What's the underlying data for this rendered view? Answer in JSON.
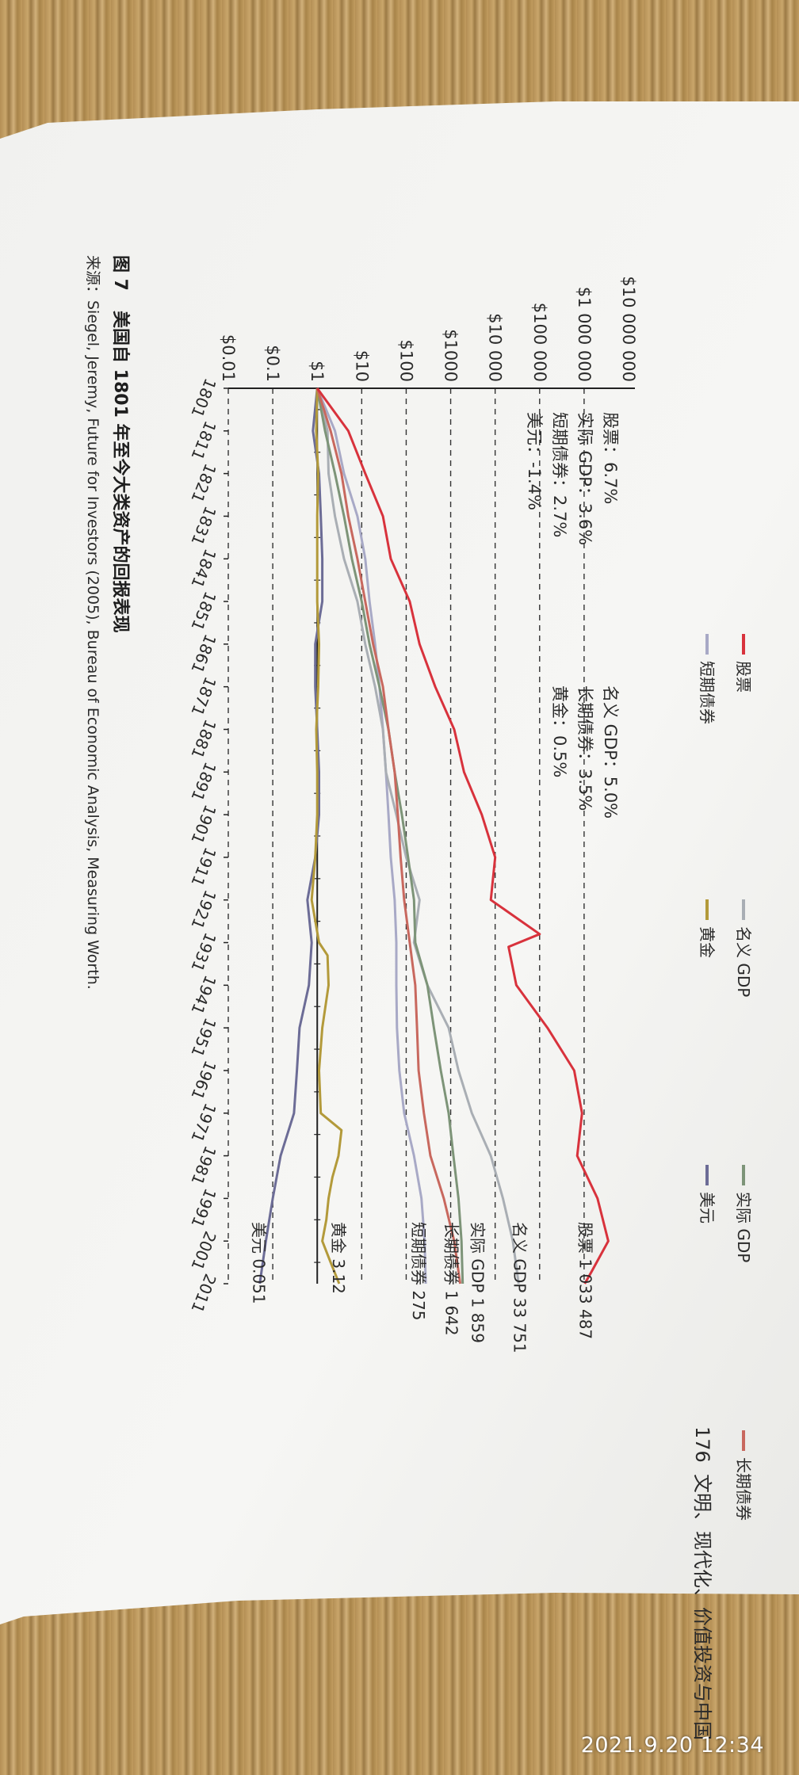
{
  "header": {
    "page_number": "176",
    "running_title": "文明、现代化、价值投资与中国"
  },
  "figure": {
    "number": "图 7",
    "title": "美国自 1801 年至今大类资产的回报表现",
    "source": "来源：Siegel, Jeremy, Future for Investors (2005), Bureau of Economic Analysis, Measuring Worth."
  },
  "photo_timestamp": "2021.9.20 12:34",
  "colors": {
    "stocks": "#d8323c",
    "nominal_gdp": "#a9aeb4",
    "real_gdp": "#7d9478",
    "long_bonds": "#c8685e",
    "short_bills": "#a8a9c6",
    "gold": "#b39a3a",
    "dollar": "#6c6c96"
  },
  "chart_data": {
    "type": "line",
    "y_scale": "log",
    "ylim": [
      0.01,
      10000000
    ],
    "xlim": [
      1801,
      2011
    ],
    "y_ticks": [
      "$0.01",
      "$0.1",
      "$1",
      "$10",
      "$100",
      "$1000",
      "$10 000",
      "$100 000",
      "$1 000 000",
      "$10 000 000"
    ],
    "x_ticks": [
      "1801",
      "1811",
      "1821",
      "1831",
      "1841",
      "1851",
      "1861",
      "1871",
      "1881",
      "1891",
      "1901",
      "1911",
      "1921",
      "1931",
      "1941",
      "1951",
      "1961",
      "1971",
      "1981",
      "1991",
      "2001",
      "2011"
    ],
    "legend": [
      {
        "key": "stocks",
        "name": "股票"
      },
      {
        "key": "nominal_gdp",
        "name": "名义 GDP"
      },
      {
        "key": "real_gdp",
        "name": "实际 GDP"
      },
      {
        "key": "long_bonds",
        "name": "长期债券"
      },
      {
        "key": "short_bills",
        "name": "短期债券"
      },
      {
        "key": "gold",
        "name": "黄金"
      },
      {
        "key": "dollar",
        "name": "美元"
      }
    ],
    "returns": [
      [
        "股票：6.7%",
        "名义 GDP：5.0%"
      ],
      [
        "实际 GDP：3.6%",
        "长期债券：3.5%"
      ],
      [
        "短期债券：2.7%",
        "黄金：0.5%"
      ],
      [
        "美元：-1.4%",
        ""
      ]
    ],
    "end_labels": [
      {
        "key": "stocks",
        "text": "股票 1 033 487"
      },
      {
        "key": "nominal_gdp",
        "text": "名义 GDP 33 751"
      },
      {
        "key": "real_gdp",
        "text": "实际 GDP 1 859"
      },
      {
        "key": "long_bonds",
        "text": "长期债券 1 642"
      },
      {
        "key": "short_bills",
        "text": "短期债券 275"
      },
      {
        "key": "gold",
        "text": "黄金 3.12"
      },
      {
        "key": "dollar",
        "text": "美元 0.051"
      }
    ],
    "series": [
      {
        "key": "stocks",
        "name": "股票",
        "x": [
          1801,
          1811,
          1821,
          1831,
          1841,
          1851,
          1861,
          1871,
          1881,
          1891,
          1901,
          1911,
          1921,
          1929,
          1932,
          1941,
          1951,
          1961,
          1971,
          1981,
          1991,
          2001,
          2008,
          2011
        ],
        "y": [
          1,
          5,
          12,
          30,
          45,
          120,
          200,
          450,
          1200,
          2000,
          5000,
          10000,
          8000,
          100000,
          20000,
          30000,
          150000,
          600000,
          900000,
          700000,
          2000000,
          3500000,
          1500000,
          1033487
        ]
      },
      {
        "key": "nominal_gdp",
        "name": "名义 GDP",
        "x": [
          1801,
          1811,
          1821,
          1831,
          1841,
          1851,
          1861,
          1871,
          1881,
          1891,
          1901,
          1911,
          1921,
          1931,
          1941,
          1951,
          1961,
          1971,
          1981,
          1991,
          2001,
          2011
        ],
        "y": [
          1,
          1.7,
          1.8,
          2.5,
          4,
          8,
          12,
          20,
          30,
          35,
          60,
          100,
          200,
          150,
          300,
          900,
          1500,
          3000,
          8000,
          15000,
          25000,
          33751
        ]
      },
      {
        "key": "real_gdp",
        "name": "实际 GDP",
        "x": [
          1801,
          1811,
          1821,
          1831,
          1841,
          1851,
          1861,
          1871,
          1881,
          1891,
          1901,
          1911,
          1921,
          1931,
          1941,
          1951,
          1961,
          1971,
          1981,
          1991,
          2001,
          2011
        ],
        "y": [
          1,
          1.5,
          2.5,
          4,
          6,
          10,
          15,
          25,
          40,
          55,
          80,
          110,
          150,
          160,
          300,
          420,
          600,
          900,
          1150,
          1500,
          1750,
          1859
        ]
      },
      {
        "key": "long_bonds",
        "name": "长期债券",
        "x": [
          1801,
          1811,
          1821,
          1831,
          1841,
          1851,
          1861,
          1871,
          1881,
          1891,
          1901,
          1911,
          1921,
          1931,
          1941,
          1951,
          1961,
          1971,
          1981,
          1991,
          2001,
          2011
        ],
        "y": [
          1,
          2,
          3.5,
          5,
          8,
          12,
          18,
          30,
          40,
          55,
          65,
          75,
          90,
          120,
          160,
          175,
          190,
          250,
          350,
          700,
          1200,
          1642
        ]
      },
      {
        "key": "short_bills",
        "name": "短期债券",
        "x": [
          1801,
          1811,
          1821,
          1831,
          1841,
          1851,
          1861,
          1871,
          1881,
          1891,
          1901,
          1911,
          1921,
          1931,
          1941,
          1951,
          1961,
          1971,
          1981,
          1991,
          2001,
          2011
        ],
        "y": [
          1,
          2.5,
          4,
          8,
          12,
          15,
          20,
          25,
          30,
          35,
          40,
          45,
          55,
          60,
          60,
          62,
          70,
          90,
          150,
          220,
          260,
          275
        ]
      },
      {
        "key": "gold",
        "name": "黄金",
        "x": [
          1801,
          1811,
          1821,
          1831,
          1841,
          1851,
          1861,
          1871,
          1881,
          1891,
          1901,
          1911,
          1921,
          1931,
          1934,
          1941,
          1951,
          1961,
          1971,
          1975,
          1981,
          1986,
          1991,
          1996,
          2001,
          2006,
          2011
        ],
        "y": [
          1,
          0.95,
          1.05,
          1.0,
          1.0,
          1.0,
          1.1,
          1.05,
          0.95,
          1.0,
          1.0,
          0.9,
          0.75,
          1.1,
          1.7,
          1.8,
          1.3,
          1.1,
          1.2,
          3.5,
          3.0,
          2.2,
          1.8,
          1.6,
          1.3,
          2.0,
          3.12
        ]
      },
      {
        "key": "dollar",
        "name": "美元",
        "x": [
          1801,
          1811,
          1821,
          1831,
          1841,
          1851,
          1861,
          1871,
          1881,
          1891,
          1901,
          1911,
          1921,
          1931,
          1941,
          1951,
          1961,
          1971,
          1981,
          1991,
          2001,
          2011
        ],
        "y": [
          1,
          0.8,
          1.1,
          1.2,
          1.3,
          1.3,
          0.9,
          0.9,
          1.0,
          1.1,
          1.1,
          0.9,
          0.6,
          0.75,
          0.65,
          0.4,
          0.35,
          0.3,
          0.15,
          0.1,
          0.07,
          0.051
        ]
      }
    ]
  }
}
